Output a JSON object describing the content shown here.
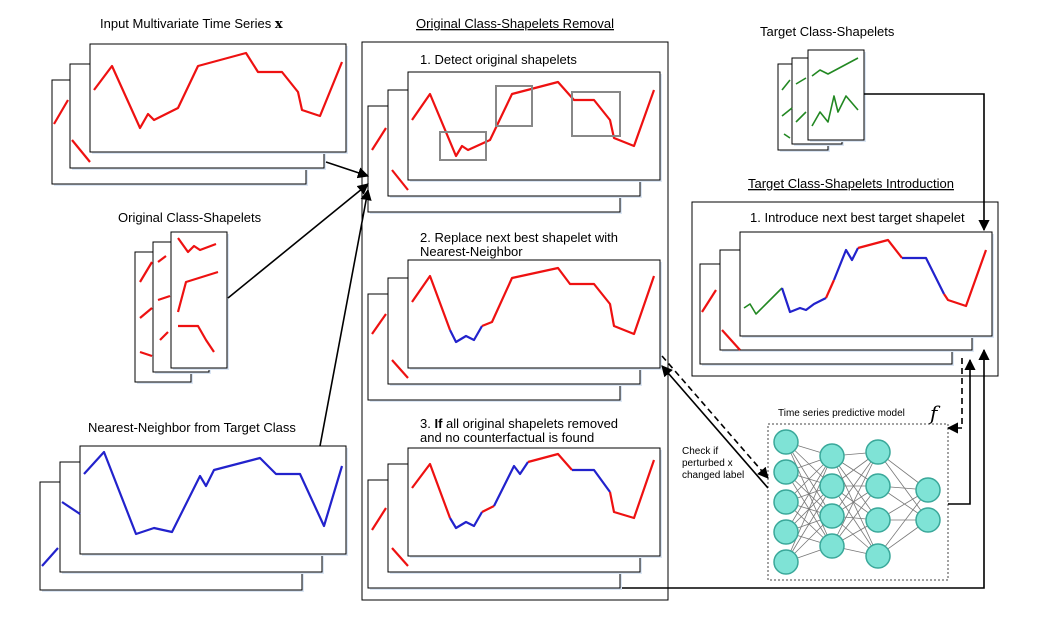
{
  "labels": {
    "input_series": "Input Multivariate Time Series",
    "input_series_var": "x",
    "original_shapelets": "Original Class-Shapelets",
    "nearest_neighbor": "Nearest-Neighbor from Target Class",
    "removal_section": "Original Class-Shapelets Removal",
    "step1": "1. Detect original shapelets",
    "step2_line1": "2. Replace next best shapelet with",
    "step2_line2": "Nearest-Neighbor",
    "step3_line1_bold": "If",
    "step3_line1_pre": "3.",
    "step3_line1_rest": "all original shapelets removed",
    "step3_line2": "and no counterfactual is found",
    "target_shapelets": "Target Class-Shapelets",
    "introduction_section": "Target Class-Shapelets Introduction",
    "intro_step1": "1. Introduce next best target shapelet",
    "model": "Time series predictive model",
    "model_symbol": "f",
    "check_line1": "Check if",
    "check_line2": "perturbed x",
    "check_line3": "changed label"
  },
  "colors": {
    "original": "#ee1111",
    "nearest_neighbor": "#2222cc",
    "target": "#228822",
    "node_fill": "#7fe3d6"
  }
}
